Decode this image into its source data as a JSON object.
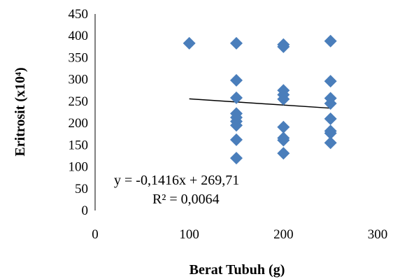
{
  "chart_data": {
    "type": "scatter",
    "title": "",
    "xlabel": "Berat Tubuh (g)",
    "ylabel": "Eritrosit (x10⁴)",
    "xlim": [
      0,
      300
    ],
    "ylim": [
      0,
      450
    ],
    "xticks": [
      0,
      100,
      200,
      300
    ],
    "yticks": [
      0,
      50,
      100,
      150,
      200,
      250,
      300,
      350,
      400,
      450
    ],
    "grid": false,
    "legend": "none",
    "marker": "diamond",
    "marker_color": "#4a7ebb",
    "points": [
      {
        "x": 100,
        "y": 383
      },
      {
        "x": 150,
        "y": 383
      },
      {
        "x": 150,
        "y": 298
      },
      {
        "x": 150,
        "y": 258
      },
      {
        "x": 150,
        "y": 222
      },
      {
        "x": 150,
        "y": 213
      },
      {
        "x": 150,
        "y": 204
      },
      {
        "x": 150,
        "y": 195
      },
      {
        "x": 150,
        "y": 162
      },
      {
        "x": 150,
        "y": 120
      },
      {
        "x": 200,
        "y": 380
      },
      {
        "x": 200,
        "y": 375
      },
      {
        "x": 200,
        "y": 275
      },
      {
        "x": 200,
        "y": 265
      },
      {
        "x": 200,
        "y": 255
      },
      {
        "x": 200,
        "y": 191
      },
      {
        "x": 200,
        "y": 166
      },
      {
        "x": 200,
        "y": 161
      },
      {
        "x": 200,
        "y": 131
      },
      {
        "x": 250,
        "y": 388
      },
      {
        "x": 250,
        "y": 296
      },
      {
        "x": 250,
        "y": 257
      },
      {
        "x": 250,
        "y": 245
      },
      {
        "x": 250,
        "y": 210
      },
      {
        "x": 250,
        "y": 182
      },
      {
        "x": 250,
        "y": 177
      },
      {
        "x": 250,
        "y": 155
      }
    ],
    "trendline": {
      "type": "linear",
      "slope": -0.1416,
      "intercept": 269.71,
      "x_start": 100,
      "x_end": 250,
      "color": "#000000"
    },
    "annotations": {
      "equation": "y = -0,1416x + 269,71",
      "r_squared": "R² = 0,0064"
    }
  }
}
